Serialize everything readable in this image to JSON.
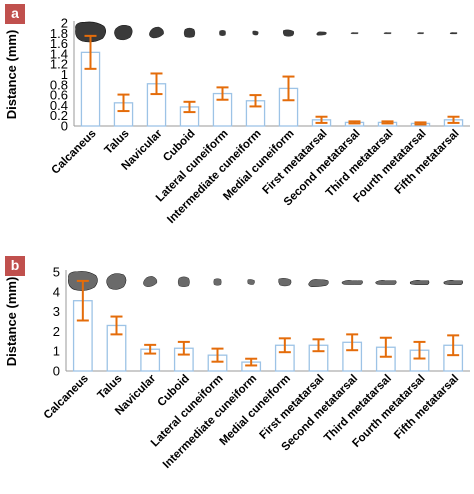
{
  "chart_data": [
    {
      "panel_label": "a",
      "type": "bar",
      "ylabel": "Distance (mm)",
      "ylim": [
        0,
        2
      ],
      "yticks": [
        "0",
        "0.2",
        "0.4",
        "0.6",
        "0.8",
        "1",
        "1.2",
        "1.4",
        "1.6",
        "1.8",
        "2"
      ],
      "categories": [
        "Calcaneus",
        "Talus",
        "Navicular",
        "Cuboid",
        "Lateral cuneiform",
        "Intermediate cuneiform",
        "Medial cuneiform",
        "First metatarsal",
        "Second metatarsal",
        "Third metatarsal",
        "Fourth metatarsal",
        "Fifth metatarsal"
      ],
      "values": [
        1.43,
        0.45,
        0.82,
        0.37,
        0.63,
        0.49,
        0.73,
        0.12,
        0.07,
        0.07,
        0.05,
        0.12
      ],
      "errors": [
        0.32,
        0.16,
        0.2,
        0.1,
        0.12,
        0.11,
        0.23,
        0.06,
        0.02,
        0.02,
        0.02,
        0.06
      ],
      "grid": false,
      "legend": "none",
      "colors": {
        "bar_edge": "#9dc3e6",
        "bar_fill": "#ffffff",
        "error_bar": "#e46c0a",
        "badge": "#c0504d",
        "bone": "#3a3a3a"
      },
      "bone_icons": [
        "calcaneus-bone-icon",
        "talus-bone-icon",
        "navicular-bone-icon",
        "cuboid-bone-icon",
        "lateral-cuneiform-bone-icon",
        "intermediate-cuneiform-bone-icon",
        "medial-cuneiform-bone-icon",
        "first-metatarsal-bone-icon",
        "second-metatarsal-bone-icon",
        "third-metatarsal-bone-icon",
        "fourth-metatarsal-bone-icon",
        "fifth-metatarsal-bone-icon"
      ]
    },
    {
      "panel_label": "b",
      "type": "bar",
      "ylabel": "Distance (mm)",
      "ylim": [
        0,
        5
      ],
      "yticks": [
        "0",
        "1",
        "2",
        "3",
        "4",
        "5"
      ],
      "categories": [
        "Calcaneus",
        "Talus",
        "Navicular",
        "Cuboid",
        "Lateral cuneiform",
        "Intermediate cuneiform",
        "Medial cuneiform",
        "First metatarsal",
        "Second metatarsal",
        "Third metatarsal",
        "Fourth metatarsal",
        "Fifth metatarsal"
      ],
      "values": [
        3.55,
        2.3,
        1.1,
        1.15,
        0.8,
        0.45,
        1.3,
        1.3,
        1.45,
        1.2,
        1.05,
        1.3
      ],
      "errors": [
        1.0,
        0.45,
        0.22,
        0.32,
        0.33,
        0.17,
        0.35,
        0.3,
        0.4,
        0.48,
        0.42,
        0.5
      ],
      "grid": false,
      "legend": "none",
      "colors": {
        "bar_edge": "#9dc3e6",
        "bar_fill": "#ffffff",
        "error_bar": "#e46c0a",
        "badge": "#c0504d",
        "bone": "#6a6a6a"
      },
      "bone_icons": [
        "calcaneus-bone-icon",
        "talus-bone-icon",
        "navicular-bone-icon",
        "cuboid-bone-icon",
        "lateral-cuneiform-bone-icon",
        "intermediate-cuneiform-bone-icon",
        "medial-cuneiform-bone-icon",
        "first-metatarsal-bone-icon",
        "second-metatarsal-bone-icon",
        "third-metatarsal-bone-icon",
        "fourth-metatarsal-bone-icon",
        "fifth-metatarsal-bone-icon"
      ]
    }
  ]
}
